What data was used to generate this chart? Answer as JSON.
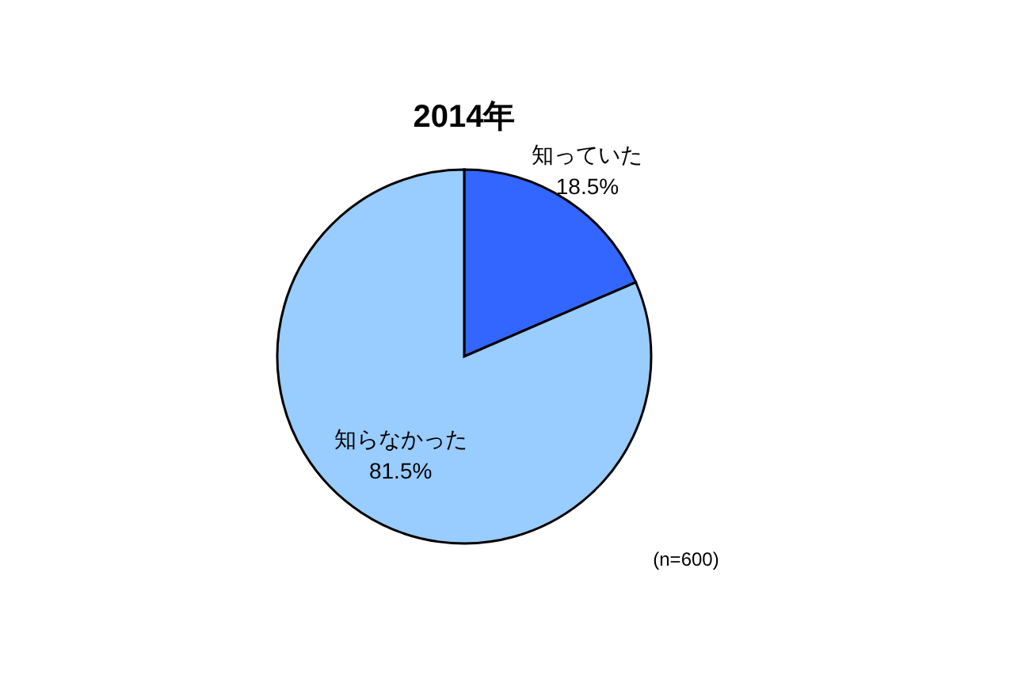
{
  "chart_data": {
    "type": "pie",
    "title": "2014年",
    "categories": [
      "知っていた",
      "知らなかった"
    ],
    "values": [
      18.5,
      81.5
    ],
    "colors": [
      "#3366ff",
      "#99ccff"
    ],
    "value_labels": [
      "18.5%",
      "81.5%"
    ],
    "annotations": [
      "(n=600)"
    ]
  }
}
